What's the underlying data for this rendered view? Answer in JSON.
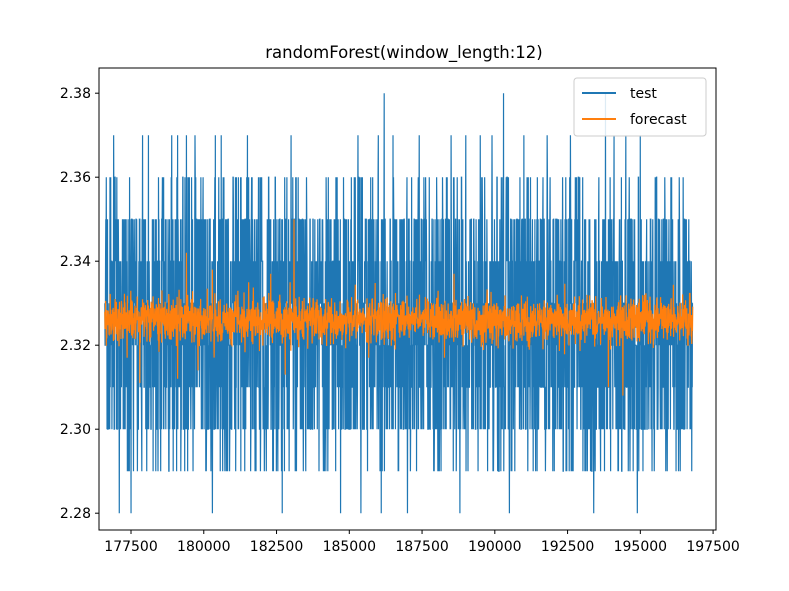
{
  "chart_data": {
    "type": "line",
    "title": "randomForest(window_length:12)",
    "xlabel": "",
    "ylabel": "",
    "xlim": [
      176400,
      197600
    ],
    "ylim": [
      2.276,
      2.386
    ],
    "x_range": [
      176600,
      196800
    ],
    "x_ticks": [
      {
        "value": 177500,
        "label": "177500"
      },
      {
        "value": 180000,
        "label": "180000"
      },
      {
        "value": 182500,
        "label": "182500"
      },
      {
        "value": 185000,
        "label": "185000"
      },
      {
        "value": 187500,
        "label": "187500"
      },
      {
        "value": 190000,
        "label": "190000"
      },
      {
        "value": 192500,
        "label": "192500"
      },
      {
        "value": 195000,
        "label": "195000"
      },
      {
        "value": 197500,
        "label": "197500"
      }
    ],
    "y_ticks": [
      {
        "value": 2.28,
        "label": "2.28"
      },
      {
        "value": 2.3,
        "label": "2.30"
      },
      {
        "value": 2.32,
        "label": "2.32"
      },
      {
        "value": 2.34,
        "label": "2.34"
      },
      {
        "value": 2.36,
        "label": "2.36"
      },
      {
        "value": 2.38,
        "label": "2.38"
      }
    ],
    "grid": false,
    "legend_position": "top-right",
    "series": [
      {
        "name": "test",
        "color": "#1f77b4",
        "dense_band": [
          2.3,
          2.35
        ],
        "band_values": [
          2.3,
          2.31,
          2.32,
          2.33,
          2.34,
          2.35
        ],
        "frequent_upper": 2.36,
        "frequent_lower": 2.29,
        "spikes": [
          {
            "x": 176900,
            "y": 2.37
          },
          {
            "x": 177900,
            "y": 2.37
          },
          {
            "x": 178100,
            "y": 2.37
          },
          {
            "x": 178900,
            "y": 2.37
          },
          {
            "x": 179100,
            "y": 2.37
          },
          {
            "x": 179400,
            "y": 2.37
          },
          {
            "x": 179700,
            "y": 2.37
          },
          {
            "x": 180400,
            "y": 2.37
          },
          {
            "x": 180600,
            "y": 2.37
          },
          {
            "x": 181500,
            "y": 2.37
          },
          {
            "x": 183000,
            "y": 2.37
          },
          {
            "x": 184700,
            "y": 2.38
          },
          {
            "x": 185300,
            "y": 2.37
          },
          {
            "x": 186000,
            "y": 2.37
          },
          {
            "x": 186200,
            "y": 2.38
          },
          {
            "x": 186500,
            "y": 2.37
          },
          {
            "x": 187400,
            "y": 2.37
          },
          {
            "x": 188500,
            "y": 2.37
          },
          {
            "x": 189000,
            "y": 2.37
          },
          {
            "x": 189500,
            "y": 2.37
          },
          {
            "x": 189900,
            "y": 2.37
          },
          {
            "x": 190300,
            "y": 2.38
          },
          {
            "x": 191000,
            "y": 2.37
          },
          {
            "x": 191800,
            "y": 2.37
          },
          {
            "x": 192600,
            "y": 2.37
          },
          {
            "x": 193800,
            "y": 2.38
          },
          {
            "x": 194100,
            "y": 2.37
          },
          {
            "x": 194500,
            "y": 2.37
          },
          {
            "x": 195000,
            "y": 2.37
          },
          {
            "x": 177100,
            "y": 2.28
          },
          {
            "x": 177500,
            "y": 2.28
          },
          {
            "x": 180300,
            "y": 2.28
          },
          {
            "x": 182700,
            "y": 2.28
          },
          {
            "x": 184700,
            "y": 2.28
          },
          {
            "x": 185400,
            "y": 2.28
          },
          {
            "x": 186100,
            "y": 2.28
          },
          {
            "x": 187000,
            "y": 2.28
          },
          {
            "x": 188800,
            "y": 2.28
          },
          {
            "x": 190500,
            "y": 2.28
          },
          {
            "x": 193400,
            "y": 2.28
          },
          {
            "x": 194900,
            "y": 2.28
          }
        ]
      },
      {
        "name": "forecast",
        "color": "#ff7f0e",
        "center": 2.326,
        "band": [
          2.32,
          2.332
        ],
        "spikes": [
          {
            "x": 179400,
            "y": 2.342
          },
          {
            "x": 180300,
            "y": 2.338
          },
          {
            "x": 183100,
            "y": 2.35
          },
          {
            "x": 182300,
            "y": 2.337
          },
          {
            "x": 188600,
            "y": 2.337
          },
          {
            "x": 194400,
            "y": 2.336
          },
          {
            "x": 177800,
            "y": 2.311
          },
          {
            "x": 179100,
            "y": 2.312
          },
          {
            "x": 179800,
            "y": 2.314
          },
          {
            "x": 182800,
            "y": 2.313
          },
          {
            "x": 193900,
            "y": 2.31
          },
          {
            "x": 194400,
            "y": 2.308
          }
        ]
      }
    ]
  }
}
